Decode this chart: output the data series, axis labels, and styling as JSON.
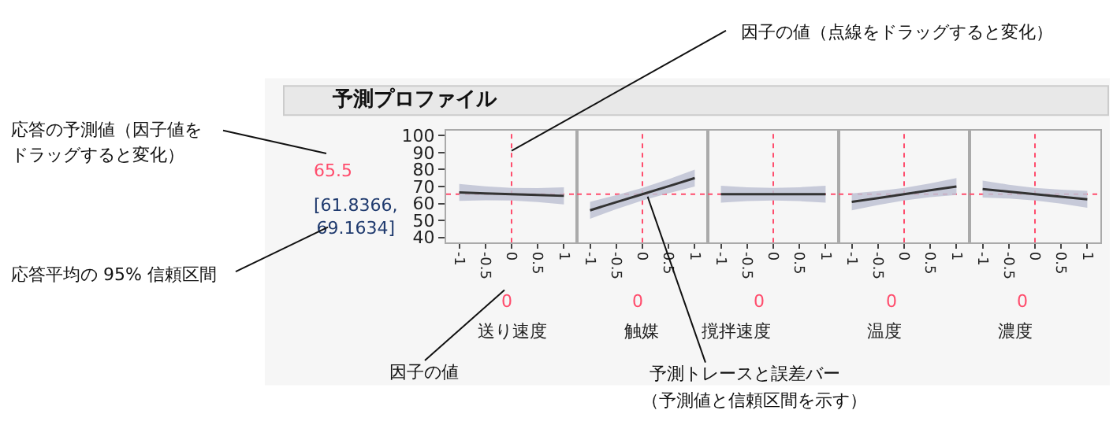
{
  "chart_data": [
    {
      "type": "line",
      "title": "予測プロファイル",
      "xlabel": "送り速度",
      "x": [
        -1,
        -0.5,
        0,
        0.5,
        1
      ],
      "xlim": [
        -1.25,
        1.25
      ],
      "xticks": [
        -1,
        -0.5,
        0,
        0.5,
        1
      ],
      "ylim": [
        37,
        103
      ],
      "yticks": [
        40,
        50,
        60,
        70,
        80,
        90,
        100
      ],
      "series": [
        {
          "color": "#333333",
          "values": [
            66.5,
            66,
            65.5,
            65,
            64.5
          ],
          "lower": [
            61.5,
            61.9,
            61.8,
            60.9,
            59.5
          ],
          "upper": [
            71.5,
            70.1,
            69.2,
            69.1,
            69.5
          ]
        }
      ],
      "ref_lines": [
        {
          "axis": "x",
          "value": 0,
          "color": "#ff4d6d",
          "line_style": "dotted"
        },
        {
          "axis": "y",
          "value": 65.5,
          "color": "#ff4d6d",
          "line_style": "dotted"
        }
      ],
      "annotations": [
        "0",
        "65.5",
        "[61.8366,\n69.1634]",
        "応答の予測値（因子値を",
        "ドラッグすると変化）",
        "応答平均の 95% 信頼区間",
        {
          "text": "因子の値（点線をドラッグすると変化）",
          "x": 0,
          "y": 91
        },
        "因子の値"
      ]
    },
    {
      "type": "line",
      "xlabel": "触媒",
      "x": [
        -1,
        -0.5,
        0,
        0.5,
        1
      ],
      "xlim": [
        -1.25,
        1.25
      ],
      "xticks": [
        -1,
        -0.5,
        0,
        0.5,
        1
      ],
      "ylim": [
        37,
        103
      ],
      "tick_labels": "x",
      "series": [
        {
          "color": "#333333",
          "values": [
            56,
            60.8,
            65.5,
            70.2,
            75
          ],
          "lower": [
            51,
            56.7,
            61.8,
            66.1,
            70
          ],
          "upper": [
            61,
            64.9,
            69.2,
            74.3,
            80
          ]
        }
      ],
      "ref_lines": [
        {
          "axis": "x",
          "value": 0,
          "color": "#ff4d6d",
          "line_style": "dotted"
        },
        {
          "axis": "y",
          "value": 65.5,
          "color": "#ff4d6d",
          "line_style": "dotted"
        }
      ],
      "annotations": [
        "0",
        {
          "text": "予測トレースと誤差バー",
          "x": 0.1,
          "y": 64
        },
        "（予測値と信頼区間を示す）"
      ]
    },
    {
      "type": "line",
      "xlabel": "撹拌速度",
      "x": [
        -1,
        -0.5,
        0,
        0.5,
        1
      ],
      "xlim": [
        -1.25,
        1.25
      ],
      "xticks": [
        -1,
        -0.5,
        0,
        0.5,
        1
      ],
      "ylim": [
        37,
        103
      ],
      "tick_labels": "x",
      "series": [
        {
          "color": "#333333",
          "values": [
            65.5,
            65.5,
            65.5,
            65.5,
            65.5
          ],
          "lower": [
            60.5,
            61.4,
            61.8,
            61.4,
            60.5
          ],
          "upper": [
            70.5,
            69.6,
            69.2,
            69.6,
            70.5
          ]
        }
      ],
      "ref_lines": [
        {
          "axis": "x",
          "value": 0,
          "color": "#ff4d6d",
          "line_style": "dotted"
        },
        {
          "axis": "y",
          "value": 65.5,
          "color": "#ff4d6d",
          "line_style": "dotted"
        }
      ],
      "annotations": [
        "0"
      ]
    },
    {
      "type": "line",
      "xlabel": "温度",
      "x": [
        -1,
        -0.5,
        0,
        0.5,
        1
      ],
      "xlim": [
        -1.25,
        1.25
      ],
      "xticks": [
        -1,
        -0.5,
        0,
        0.5,
        1
      ],
      "ylim": [
        37,
        103
      ],
      "tick_labels": "x",
      "series": [
        {
          "color": "#333333",
          "values": [
            61,
            63.2,
            65.5,
            67.8,
            70
          ],
          "lower": [
            56,
            59.1,
            61.8,
            63.7,
            65
          ],
          "upper": [
            66,
            67.3,
            69.2,
            71.9,
            75
          ]
        }
      ],
      "ref_lines": [
        {
          "axis": "x",
          "value": 0,
          "color": "#ff4d6d",
          "line_style": "dotted"
        },
        {
          "axis": "y",
          "value": 65.5,
          "color": "#ff4d6d",
          "line_style": "dotted"
        }
      ],
      "annotations": [
        "0"
      ]
    },
    {
      "type": "line",
      "xlabel": "濃度",
      "x": [
        -1,
        -0.5,
        0,
        0.5,
        1
      ],
      "xlim": [
        -1.25,
        1.25
      ],
      "xticks": [
        -1,
        -0.5,
        0,
        0.5,
        1
      ],
      "ylim": [
        37,
        103
      ],
      "tick_labels": "x",
      "series": [
        {
          "color": "#333333",
          "values": [
            68.5,
            67,
            65.5,
            64,
            62.5
          ],
          "lower": [
            63.5,
            62.9,
            61.8,
            59.9,
            57.5
          ],
          "upper": [
            73.5,
            71.1,
            69.2,
            68.1,
            67.5
          ]
        }
      ],
      "ref_lines": [
        {
          "axis": "x",
          "value": 0,
          "color": "#ff4d6d",
          "line_style": "dotted"
        },
        {
          "axis": "y",
          "value": 65.5,
          "color": "#ff4d6d",
          "line_style": "dotted"
        }
      ],
      "annotations": [
        "0"
      ]
    }
  ]
}
